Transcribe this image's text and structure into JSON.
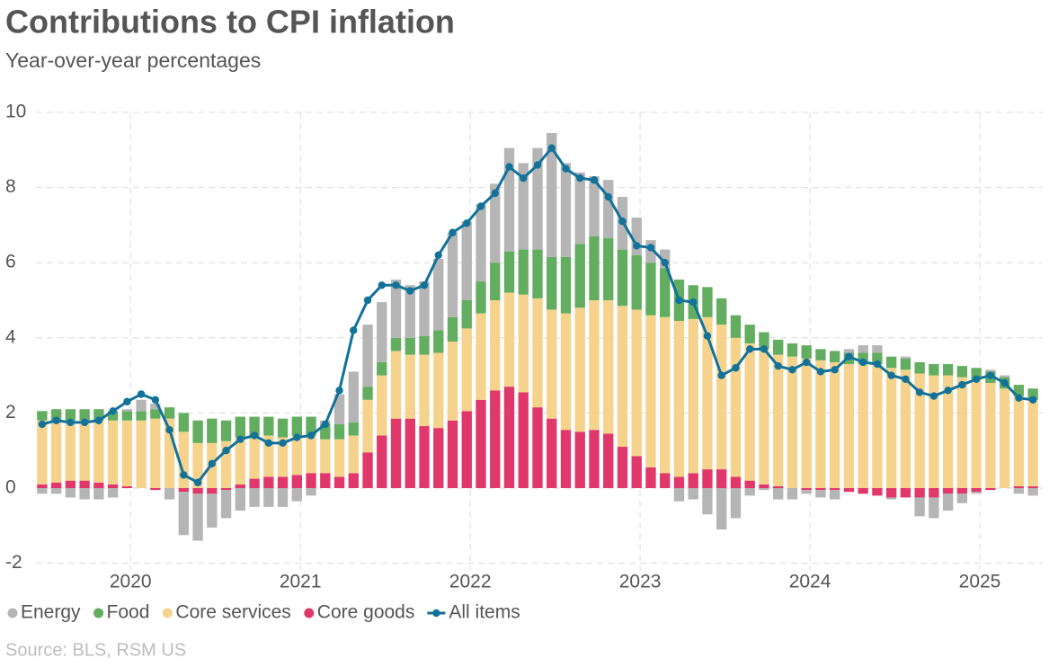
{
  "chart_data": {
    "type": "bar",
    "stacked": true,
    "title": "Contributions to CPI inflation",
    "subtitle": "Year-over-year percentages",
    "source": "Source: BLS, RSM US",
    "categories": [
      null,
      null,
      null,
      null,
      null,
      null,
      null,
      "2020",
      null,
      null,
      null,
      null,
      null,
      null,
      null,
      null,
      null,
      null,
      null,
      "2021",
      null,
      null,
      null,
      null,
      null,
      null,
      null,
      null,
      null,
      null,
      null,
      "2022",
      null,
      null,
      null,
      null,
      null,
      null,
      null,
      null,
      null,
      null,
      null,
      "2023",
      null,
      null,
      null,
      null,
      null,
      null,
      null,
      null,
      null,
      null,
      null,
      "2024",
      null,
      null,
      null,
      null,
      null,
      null,
      null,
      null,
      null,
      null,
      null,
      "2025",
      null,
      null,
      null
    ],
    "ylim": [
      -2,
      10
    ],
    "yticks": [
      -2,
      0,
      2,
      4,
      6,
      8,
      10
    ],
    "grid": true,
    "series": [
      {
        "name": "Energy",
        "type": "bar",
        "color": "#b5b5b5",
        "values": [
          -0.15,
          -0.15,
          -0.25,
          -0.3,
          -0.3,
          -0.25,
          0.05,
          0.3,
          0.15,
          -0.3,
          -1.15,
          -1.25,
          -0.9,
          -0.75,
          -0.6,
          -0.5,
          -0.5,
          -0.5,
          -0.35,
          -0.2,
          0.1,
          0.8,
          1.35,
          1.65,
          1.6,
          1.55,
          1.4,
          1.45,
          1.9,
          2.25,
          2.1,
          2.05,
          2.1,
          2.75,
          2.3,
          2.7,
          3.3,
          2.5,
          1.9,
          1.6,
          1.55,
          1.4,
          1.0,
          0.6,
          0.5,
          -0.35,
          -0.3,
          -0.7,
          -1.1,
          -0.8,
          -0.2,
          -0.05,
          -0.3,
          -0.3,
          -0.1,
          -0.2,
          -0.25,
          0.1,
          0.2,
          0.2,
          -0.05,
          0.05,
          -0.5,
          -0.55,
          -0.45,
          -0.25,
          -0.05,
          0.05,
          0.05,
          -0.15,
          -0.2
        ]
      },
      {
        "name": "Food",
        "type": "bar",
        "color": "#62ad5f",
        "values": [
          0.25,
          0.3,
          0.3,
          0.3,
          0.3,
          0.25,
          0.25,
          0.25,
          0.25,
          0.3,
          0.5,
          0.6,
          0.65,
          0.55,
          0.55,
          0.5,
          0.5,
          0.5,
          0.5,
          0.5,
          0.4,
          0.4,
          0.35,
          0.35,
          0.35,
          0.35,
          0.45,
          0.5,
          0.6,
          0.65,
          0.75,
          0.85,
          1.0,
          1.1,
          1.2,
          1.3,
          1.4,
          1.5,
          1.7,
          1.7,
          1.65,
          1.5,
          1.45,
          1.4,
          1.3,
          1.1,
          0.9,
          0.8,
          0.7,
          0.6,
          0.5,
          0.45,
          0.4,
          0.35,
          0.35,
          0.3,
          0.3,
          0.3,
          0.3,
          0.3,
          0.3,
          0.3,
          0.3,
          0.3,
          0.3,
          0.3,
          0.3,
          0.3,
          0.3,
          0.3,
          0.3
        ]
      },
      {
        "name": "Core services",
        "type": "bar",
        "color": "#f6d38d",
        "values": [
          1.7,
          1.65,
          1.6,
          1.6,
          1.65,
          1.7,
          1.75,
          1.8,
          1.85,
          1.85,
          1.5,
          1.2,
          1.2,
          1.25,
          1.25,
          1.15,
          1.1,
          1.05,
          1.05,
          1.0,
          0.9,
          1.0,
          1.0,
          1.4,
          1.6,
          1.8,
          1.7,
          1.9,
          2.0,
          2.1,
          2.2,
          2.3,
          2.4,
          2.5,
          2.6,
          2.9,
          2.9,
          3.1,
          3.3,
          3.45,
          3.55,
          3.75,
          3.9,
          4.05,
          4.15,
          4.15,
          4.1,
          4.05,
          3.85,
          3.7,
          3.65,
          3.6,
          3.5,
          3.5,
          3.45,
          3.4,
          3.35,
          3.3,
          3.3,
          3.3,
          3.2,
          3.15,
          3.05,
          3.0,
          3.0,
          2.95,
          2.9,
          2.8,
          2.65,
          2.4,
          2.3
        ]
      },
      {
        "name": "Core goods",
        "type": "bar",
        "color": "#e0386b",
        "values": [
          0.1,
          0.15,
          0.2,
          0.2,
          0.15,
          0.1,
          0.05,
          0.0,
          -0.05,
          0.0,
          -0.1,
          -0.15,
          -0.15,
          -0.05,
          0.1,
          0.25,
          0.3,
          0.3,
          0.35,
          0.4,
          0.4,
          0.3,
          0.4,
          0.95,
          1.4,
          1.85,
          1.85,
          1.65,
          1.6,
          1.8,
          2.05,
          2.35,
          2.6,
          2.7,
          2.55,
          2.15,
          1.85,
          1.55,
          1.5,
          1.55,
          1.45,
          1.1,
          0.85,
          0.55,
          0.4,
          0.3,
          0.4,
          0.5,
          0.5,
          0.3,
          0.2,
          0.1,
          0.05,
          0.0,
          -0.05,
          -0.05,
          -0.05,
          -0.1,
          -0.15,
          -0.2,
          -0.25,
          -0.25,
          -0.25,
          -0.25,
          -0.15,
          -0.15,
          -0.1,
          -0.05,
          0.0,
          0.05,
          0.05
        ]
      },
      {
        "name": "All items",
        "type": "line",
        "color": "#12729a",
        "values": [
          1.7,
          1.8,
          1.75,
          1.75,
          1.8,
          2.05,
          2.3,
          2.5,
          2.35,
          1.55,
          0.35,
          0.15,
          0.65,
          1.0,
          1.3,
          1.4,
          1.2,
          1.2,
          1.35,
          1.4,
          1.7,
          2.6,
          4.2,
          5.0,
          5.4,
          5.4,
          5.25,
          5.4,
          6.2,
          6.8,
          7.05,
          7.5,
          7.85,
          8.55,
          8.25,
          8.6,
          9.05,
          8.5,
          8.25,
          8.2,
          7.75,
          7.1,
          6.45,
          6.4,
          6.0,
          5.0,
          4.95,
          4.05,
          3.0,
          3.2,
          3.7,
          3.7,
          3.25,
          3.15,
          3.35,
          3.1,
          3.15,
          3.5,
          3.35,
          3.3,
          3.0,
          2.9,
          2.55,
          2.45,
          2.6,
          2.75,
          2.9,
          3.0,
          2.8,
          2.4,
          2.35
        ]
      }
    ]
  }
}
